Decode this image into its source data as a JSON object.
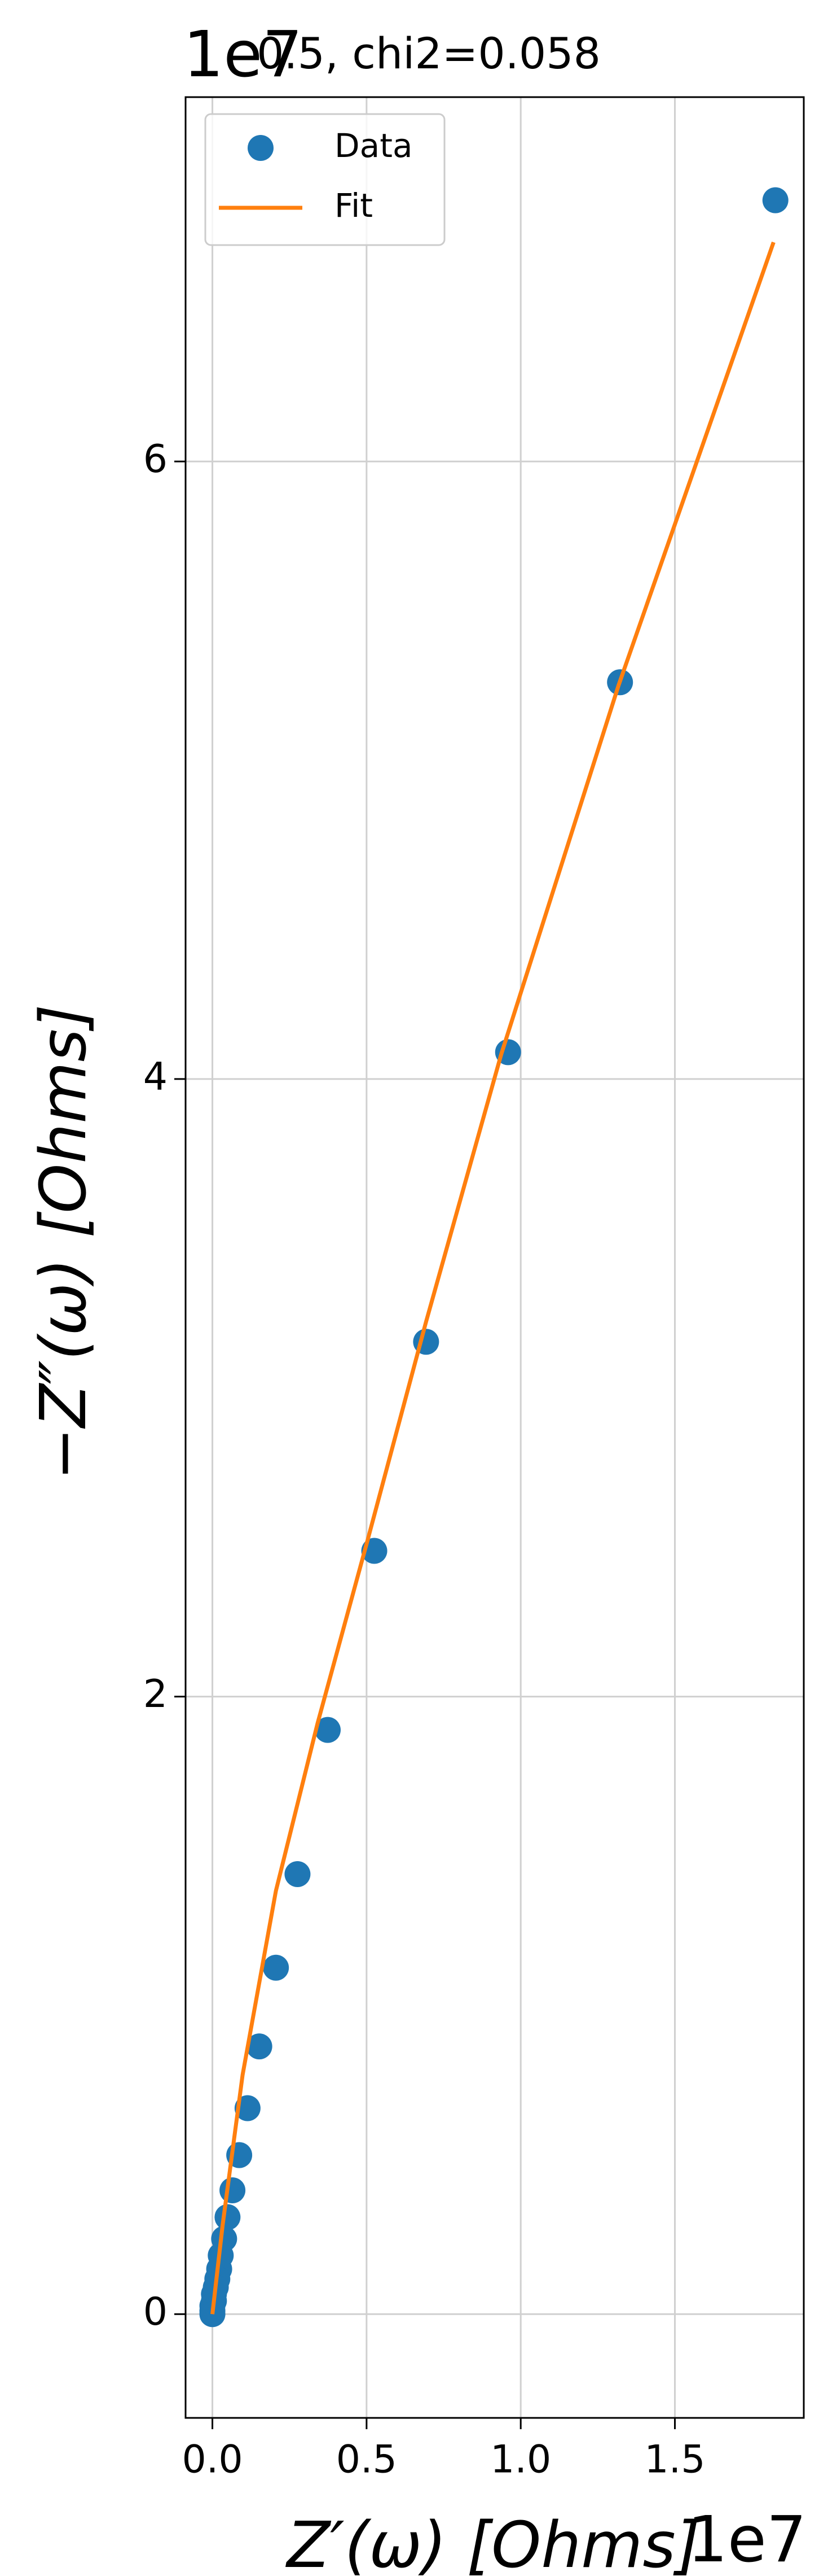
{
  "chart_data": {
    "type": "scatter",
    "title": "0.5, chi2=0.058",
    "x_label": "Z′(ω) [Ohms]",
    "y_label": "−Z″(ω) [Ohms]",
    "x_offset": "1e7",
    "y_offset": "1e7",
    "xlim": [
      -0.087,
      1.918
    ],
    "ylim": [
      -0.336,
      7.18
    ],
    "xticks": [
      {
        "value": 0,
        "label": "0.0"
      },
      0.5,
      {
        "value": 1,
        "label": "1.0"
      },
      1.5
    ],
    "yticks": [
      0,
      2,
      4,
      6
    ],
    "grid": true,
    "legend": "upper left",
    "series": [
      {
        "name": "Data",
        "color": "#1f77b4",
        "style": "markers",
        "x": [
          1.826,
          1.322,
          0.959,
          0.693,
          0.525,
          0.374,
          0.276,
          0.206,
          0.152,
          0.114,
          0.087,
          0.065,
          0.049,
          0.038,
          0.027,
          0.022,
          0.016,
          0.011,
          0.005,
          0.005,
          0,
          0,
          0
        ],
        "values": [
          6.846,
          5.285,
          4.087,
          3.149,
          2.472,
          1.892,
          1.425,
          1.122,
          0.867,
          0.667,
          0.515,
          0.401,
          0.314,
          0.244,
          0.19,
          0.146,
          0.114,
          0.087,
          0.065,
          0.043,
          0.027,
          0.011,
          0
        ]
      },
      {
        "name": "Fit",
        "color": "#ff7f0e",
        "style": "line",
        "x": [
          0,
          0.033,
          0.098,
          0.206,
          0.341,
          0.504,
          0.693,
          0.937,
          1.317,
          1.82
        ],
        "values": [
          0,
          0.287,
          0.775,
          1.371,
          1.913,
          2.509,
          3.214,
          4.081,
          5.274,
          6.71
        ]
      }
    ]
  }
}
